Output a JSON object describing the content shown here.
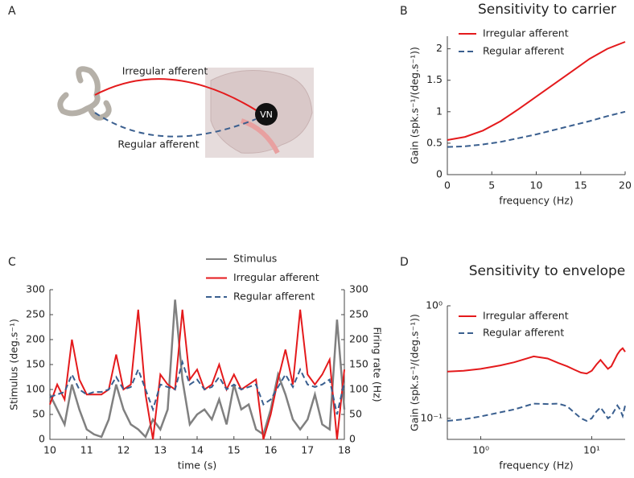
{
  "illustration": {
    "panel_label": "A",
    "irregular": "Irregular afferent",
    "regular": "Regular afferent",
    "nucleus": "VN"
  },
  "chart_data": [
    {
      "type": "line",
      "panel_label": "B",
      "title": "Sensitivity to carrier",
      "xlabel": "frequency (Hz)",
      "ylabel": "Gain (spk.s⁻¹/(deg.s⁻¹))",
      "x": [
        0,
        2,
        4,
        6,
        8,
        10,
        12,
        14,
        16,
        18,
        20
      ],
      "series": [
        {
          "name": "Irregular afferent",
          "color": "#e41a1c",
          "linestyle": "solid",
          "values": [
            0.55,
            0.6,
            0.7,
            0.85,
            1.04,
            1.24,
            1.44,
            1.64,
            1.84,
            2.0,
            2.11
          ]
        },
        {
          "name": "Regular afferent",
          "color": "#3a5f8f",
          "linestyle": "dashed",
          "values": [
            0.44,
            0.45,
            0.48,
            0.52,
            0.58,
            0.64,
            0.71,
            0.78,
            0.85,
            0.93,
            1.0
          ]
        }
      ],
      "xlim": [
        0,
        20
      ],
      "xticks": [
        0,
        5,
        10,
        15,
        20
      ],
      "ylim": [
        0,
        2.2
      ],
      "yticks": [
        0,
        0.5,
        1,
        1.5,
        2
      ]
    },
    {
      "type": "line",
      "panel_label": "C",
      "xlabel": "time (s)",
      "ylabel": "Stimulus (deg.s⁻¹)",
      "y2label": "Firing rate (Hz)",
      "x": [
        10,
        10.2,
        10.4,
        10.6,
        10.8,
        11,
        11.2,
        11.4,
        11.6,
        11.8,
        12,
        12.2,
        12.4,
        12.6,
        12.8,
        13,
        13.2,
        13.4,
        13.6,
        13.8,
        14,
        14.2,
        14.4,
        14.6,
        14.8,
        15,
        15.2,
        15.4,
        15.6,
        15.8,
        16,
        16.2,
        16.4,
        16.6,
        16.8,
        17,
        17.2,
        17.4,
        17.6,
        17.8,
        18
      ],
      "series": [
        {
          "name": "Stimulus",
          "color": "#808080",
          "linestyle": "solid",
          "values": [
            90,
            60,
            30,
            110,
            60,
            20,
            10,
            5,
            40,
            110,
            60,
            30,
            20,
            5,
            40,
            20,
            60,
            280,
            120,
            30,
            50,
            60,
            40,
            80,
            30,
            110,
            60,
            70,
            20,
            10,
            60,
            130,
            90,
            40,
            20,
            40,
            90,
            30,
            20,
            240,
            60
          ]
        },
        {
          "name": "Irregular afferent",
          "color": "#e41a1c",
          "linestyle": "solid",
          "axis": "y2",
          "values": [
            70,
            110,
            80,
            200,
            120,
            90,
            90,
            90,
            100,
            170,
            100,
            110,
            260,
            90,
            0,
            130,
            110,
            100,
            260,
            120,
            140,
            100,
            110,
            150,
            100,
            130,
            100,
            110,
            120,
            0,
            50,
            120,
            180,
            110,
            260,
            130,
            110,
            130,
            160,
            0,
            140
          ]
        },
        {
          "name": "Regular afferent",
          "color": "#3a5f8f",
          "linestyle": "dashed",
          "axis": "y2",
          "values": [
            85,
            90,
            95,
            130,
            100,
            90,
            95,
            95,
            100,
            125,
            100,
            105,
            140,
            100,
            60,
            110,
            105,
            100,
            155,
            110,
            120,
            100,
            105,
            125,
            100,
            110,
            100,
            105,
            110,
            70,
            80,
            105,
            130,
            105,
            140,
            110,
            105,
            110,
            120,
            50,
            115
          ]
        }
      ],
      "xlim": [
        10,
        18
      ],
      "xticks": [
        10,
        11,
        12,
        13,
        14,
        15,
        16,
        17,
        18
      ],
      "ylim": [
        0,
        300
      ],
      "yticks": [
        0,
        50,
        100,
        150,
        200,
        250,
        300
      ],
      "y2lim": [
        0,
        300
      ],
      "y2ticks": [
        0,
        50,
        100,
        150,
        200,
        250,
        300
      ]
    },
    {
      "type": "line",
      "panel_label": "D",
      "title": "Sensitivity to envelope",
      "log": true,
      "xlabel": "frequency (Hz)",
      "ylabel": "Gain (spk.s⁻¹/(deg.s⁻¹))",
      "x": [
        0.5,
        0.7,
        1,
        1.5,
        2,
        3,
        4,
        5,
        6,
        7,
        8,
        9,
        10,
        11,
        12,
        13,
        14,
        15,
        17,
        18,
        19,
        20
      ],
      "series": [
        {
          "name": "Irregular afferent",
          "color": "#e41a1c",
          "linestyle": "solid",
          "values": [
            0.26,
            0.265,
            0.275,
            0.295,
            0.315,
            0.355,
            0.34,
            0.31,
            0.29,
            0.27,
            0.255,
            0.25,
            0.265,
            0.3,
            0.33,
            0.3,
            0.275,
            0.29,
            0.37,
            0.4,
            0.42,
            0.39
          ]
        },
        {
          "name": "Regular afferent",
          "color": "#3a5f8f",
          "linestyle": "dashed",
          "values": [
            0.095,
            0.098,
            0.104,
            0.113,
            0.12,
            0.135,
            0.134,
            0.135,
            0.128,
            0.112,
            0.1,
            0.095,
            0.1,
            0.115,
            0.125,
            0.112,
            0.1,
            0.105,
            0.13,
            0.12,
            0.105,
            0.13
          ]
        }
      ],
      "xlim": [
        0.5,
        20
      ],
      "xticks": [
        {
          "value": 1,
          "label": "10⁰"
        },
        {
          "value": 10,
          "label": "10¹"
        }
      ],
      "ylim": [
        0.065,
        1
      ],
      "yticks": [
        {
          "value": 0.1,
          "label": "10⁻¹"
        },
        {
          "value": 1,
          "label": "10⁰"
        }
      ]
    }
  ]
}
